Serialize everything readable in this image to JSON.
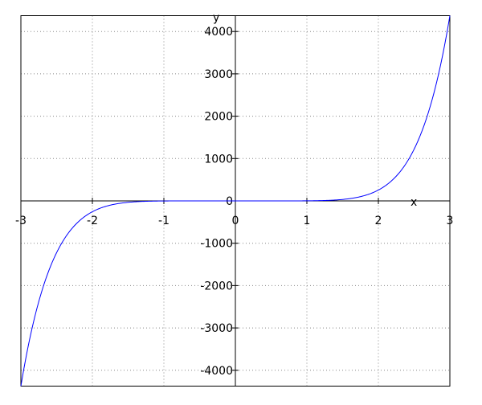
{
  "chart_data": {
    "type": "line",
    "title": "",
    "xlabel": "x",
    "ylabel": "y",
    "xlim": [
      -3,
      3
    ],
    "ylim": [
      -4374,
      4374
    ],
    "grid": true,
    "x_ticks": [
      -3,
      -2,
      -1,
      0,
      1,
      2,
      3
    ],
    "y_ticks": [
      -4000,
      -3000,
      -2000,
      -1000,
      0,
      1000,
      2000,
      3000,
      4000
    ],
    "series": [
      {
        "color": "#0000ff",
        "function": "2*x^7",
        "x": [
          -3,
          -2.75,
          -2.5,
          -2.25,
          -2,
          -1.75,
          -1.5,
          -1.25,
          -1,
          -0.5,
          0,
          0.5,
          1,
          1.25,
          1.5,
          1.75,
          2,
          2.25,
          2.5,
          2.75,
          3
        ],
        "y": [
          -4374,
          -2388,
          -1221,
          -583,
          -256,
          -101,
          -34,
          -9.5,
          -2,
          -0.02,
          0,
          0.02,
          2,
          9.5,
          34,
          101,
          256,
          583,
          1221,
          2388,
          4374
        ]
      }
    ]
  }
}
